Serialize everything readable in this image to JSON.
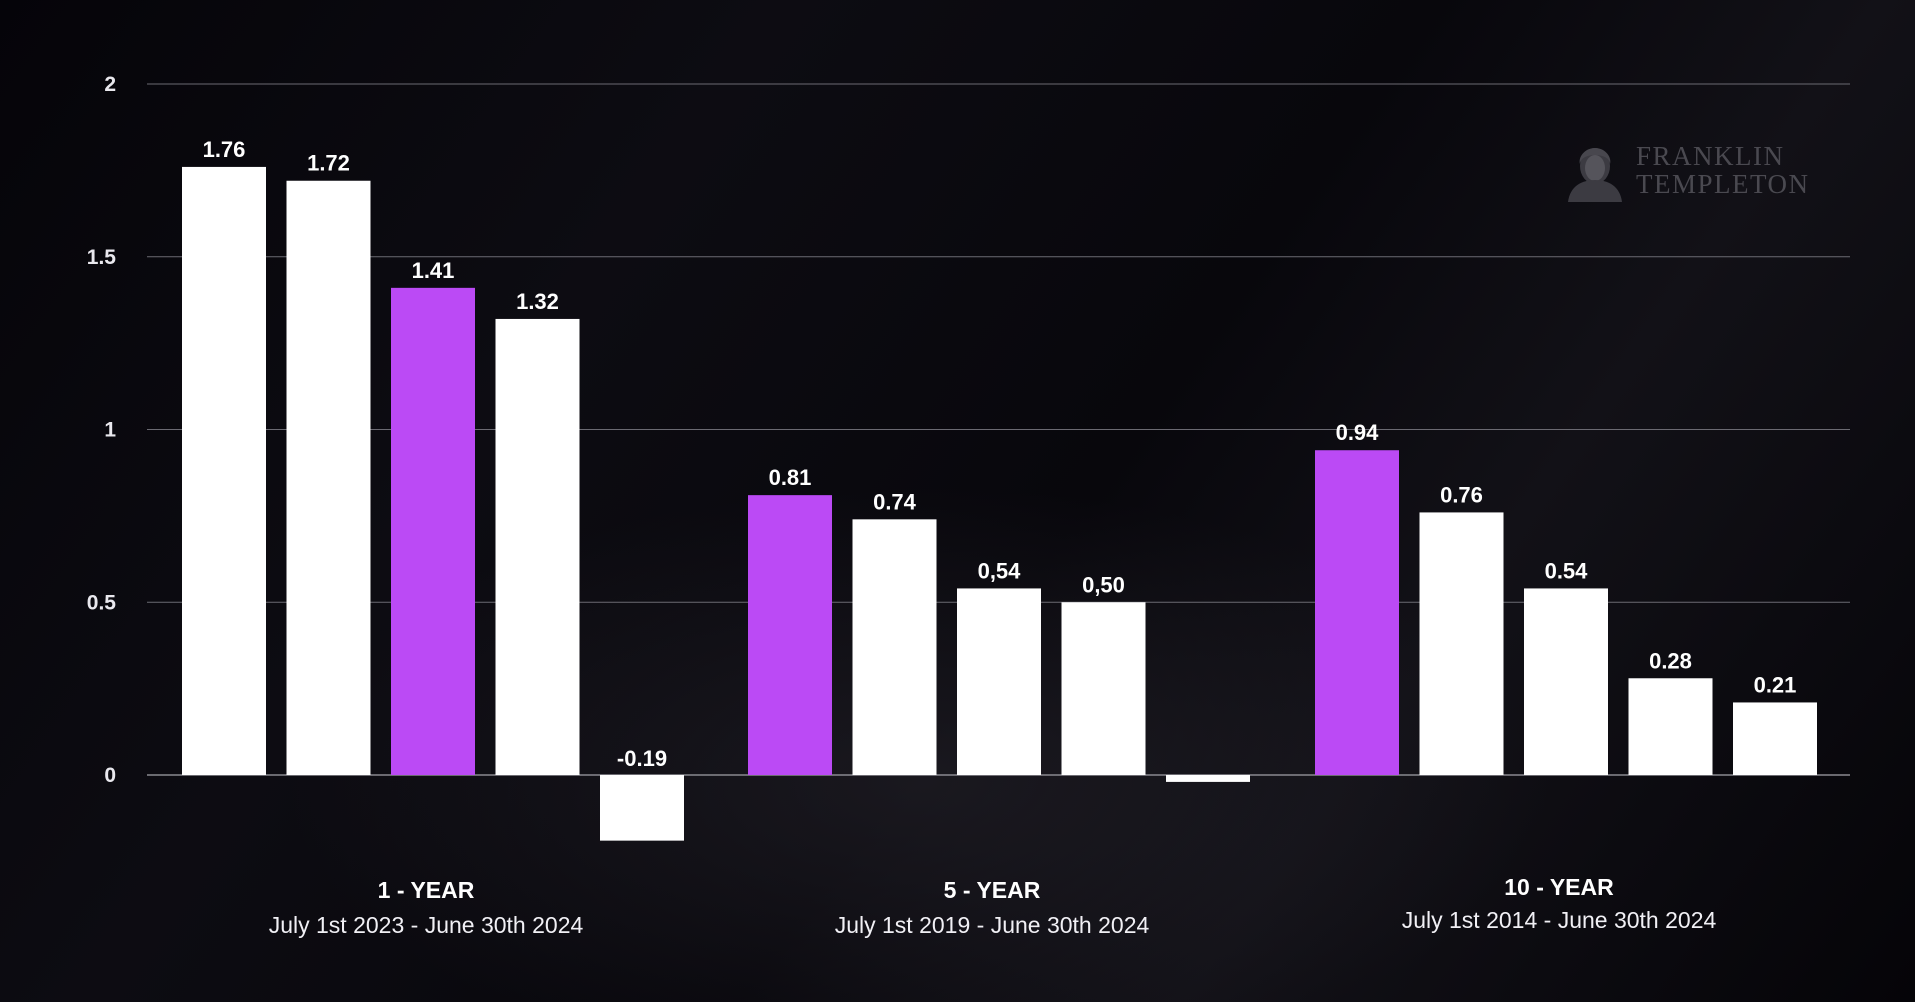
{
  "brand": {
    "line1": "FRANKLIN",
    "line2": "TEMPLETON",
    "logo_icon": "franklin-portrait-icon"
  },
  "colors": {
    "background": "#07060a",
    "bar_default": "#ffffff",
    "bar_highlight": "#bb4af5",
    "gridline": "#6b6a72",
    "text": "#ffffff"
  },
  "chart_data": {
    "type": "bar",
    "title": "",
    "xlabel": "",
    "ylabel": "",
    "ylim": [
      -0.25,
      2
    ],
    "yticks": [
      0,
      0.5,
      1,
      1.5,
      2
    ],
    "ytick_labels": [
      "0",
      "0.5",
      "1",
      "1.5",
      "2"
    ],
    "grid": true,
    "legend": "none",
    "groups": [
      {
        "title": "1 - YEAR",
        "subtitle": "July 1st 2023 - June 30th 2024",
        "bars": [
          {
            "value": 1.76,
            "label": "1.76",
            "highlight": false
          },
          {
            "value": 1.72,
            "label": "1.72",
            "highlight": false
          },
          {
            "value": 1.41,
            "label": "1.41",
            "highlight": true
          },
          {
            "value": 1.32,
            "label": "1.32",
            "highlight": false
          },
          {
            "value": -0.19,
            "label": "-0.19",
            "highlight": false
          }
        ]
      },
      {
        "title": "5 - YEAR",
        "subtitle": "July 1st 2019 - June 30th 2024",
        "bars": [
          {
            "value": 0.81,
            "label": "0.81",
            "highlight": true
          },
          {
            "value": 0.74,
            "label": "0.74",
            "highlight": false
          },
          {
            "value": 0.54,
            "label": "0,54",
            "highlight": false
          },
          {
            "value": 0.5,
            "label": "0,50",
            "highlight": false
          },
          {
            "value": -0.02,
            "label": "",
            "highlight": false
          }
        ]
      },
      {
        "title": "10 - YEAR",
        "subtitle": "July 1st 2014 - June 30th 2024",
        "bars": [
          {
            "value": 0.94,
            "label": "0.94",
            "highlight": true
          },
          {
            "value": 0.76,
            "label": "0.76",
            "highlight": false
          },
          {
            "value": 0.54,
            "label": "0.54",
            "highlight": false
          },
          {
            "value": 0.28,
            "label": "0.28",
            "highlight": false
          },
          {
            "value": 0.21,
            "label": "0.21",
            "highlight": false
          }
        ]
      }
    ]
  }
}
